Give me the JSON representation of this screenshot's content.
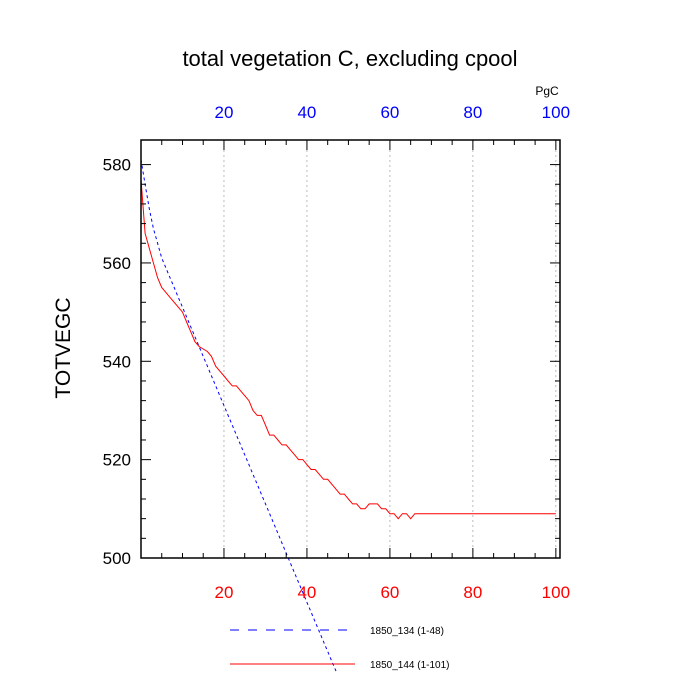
{
  "chart_data": {
    "type": "line",
    "title": "total vegetation C, excluding cpool",
    "ylabel": "TOTVEGC",
    "units_label": "PgC",
    "ylim": [
      500,
      585
    ],
    "y_ticks": [
      500,
      520,
      540,
      560,
      580
    ],
    "xlim_bottom": [
      0,
      101
    ],
    "x_ticks_bottom": [
      20,
      40,
      60,
      80,
      100
    ],
    "bottom_axis_color": "#ff0000",
    "xlim_top": [
      0,
      101
    ],
    "x_ticks_top": [
      20,
      40,
      60,
      80,
      100
    ],
    "top_axis_color": "#0000ff",
    "grid": "vertical dashed",
    "legend_position": "bottom",
    "series": [
      {
        "name": "1850_134 (1-48)",
        "color": "#0000ff",
        "style": "dashed",
        "axis": "top",
        "x": [
          0,
          1,
          2,
          3,
          4,
          5,
          6,
          7,
          8,
          9,
          10,
          11,
          12,
          13,
          14,
          15,
          16,
          17,
          18,
          19,
          20,
          21,
          22,
          23,
          24,
          25,
          26,
          27,
          28,
          29,
          30,
          31,
          32,
          33,
          34,
          35,
          36,
          37,
          38,
          39,
          40,
          41,
          42,
          43,
          44,
          45,
          46,
          47
        ],
        "y": [
          581,
          576,
          571,
          567,
          564,
          561,
          559,
          557,
          555,
          553,
          551,
          549,
          547,
          545,
          543,
          541,
          539,
          537,
          535,
          533,
          531,
          529,
          527,
          525,
          523,
          521,
          519,
          517,
          515,
          513,
          511,
          509,
          507,
          505,
          503,
          501,
          499,
          497,
          495,
          493,
          491,
          489,
          487,
          485,
          483,
          481,
          479,
          477
        ]
      },
      {
        "name": "1850_144 (1-101)",
        "color": "#ff0000",
        "style": "solid",
        "axis": "bottom",
        "x": [
          0,
          1,
          2,
          3,
          4,
          5,
          6,
          7,
          8,
          9,
          10,
          11,
          12,
          13,
          14,
          15,
          16,
          17,
          18,
          19,
          20,
          21,
          22,
          23,
          24,
          25,
          26,
          27,
          28,
          29,
          30,
          31,
          32,
          33,
          34,
          35,
          36,
          37,
          38,
          39,
          40,
          41,
          42,
          43,
          44,
          45,
          46,
          47,
          48,
          49,
          50,
          51,
          52,
          53,
          54,
          55,
          56,
          57,
          58,
          59,
          60,
          61,
          62,
          63,
          64,
          65,
          66,
          67,
          68,
          69,
          70,
          71,
          72,
          73,
          74,
          75,
          76,
          77,
          78,
          79,
          80,
          81,
          82,
          83,
          84,
          85,
          86,
          87,
          88,
          89,
          90,
          91,
          92,
          93,
          94,
          95,
          96,
          97,
          98,
          99,
          100
        ],
        "y": [
          577,
          566,
          563,
          560,
          557,
          555,
          554,
          553,
          552,
          551,
          550,
          548,
          546,
          544,
          543,
          542.5,
          542,
          541,
          539,
          538,
          537,
          536,
          535,
          535,
          534,
          533,
          532,
          530,
          529,
          529,
          527,
          525,
          525,
          524,
          523,
          523,
          522,
          521,
          520,
          520,
          519,
          518,
          518,
          517,
          516,
          516,
          515,
          514,
          513,
          513,
          512,
          511,
          511,
          510,
          510,
          511,
          511,
          511,
          510,
          510,
          509,
          509,
          508,
          509,
          509,
          508,
          509,
          509,
          509,
          509,
          509,
          509,
          509,
          509,
          509,
          509,
          509,
          509,
          509,
          509,
          509,
          509,
          509,
          509,
          509,
          509,
          509,
          509,
          509,
          509,
          509,
          509,
          509,
          509,
          509,
          509,
          509,
          509,
          509,
          509,
          509
        ]
      }
    ]
  }
}
